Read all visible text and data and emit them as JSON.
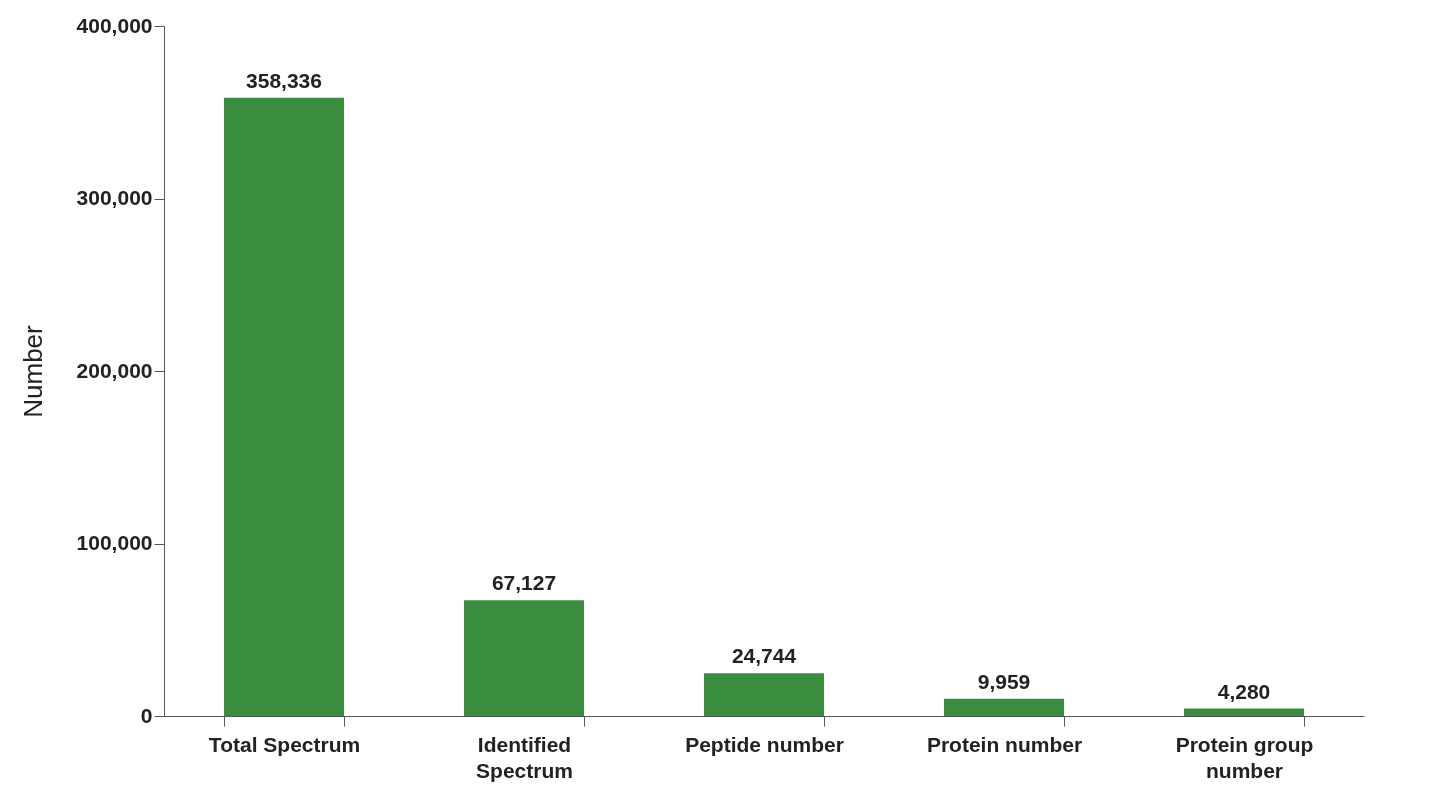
{
  "chart_data": {
    "type": "bar",
    "ylabel": "Number",
    "categories": [
      "Total Spectrum",
      "Identified Spectrum",
      "Peptide number",
      "Protein number",
      "Protein group number"
    ],
    "values": [
      358336,
      67127,
      24744,
      9959,
      4280
    ],
    "value_labels": [
      "358,336",
      "67,127",
      "24,744",
      "9,959",
      "4,280"
    ],
    "color": "#3a8c3f",
    "ylim": [
      0,
      400000
    ],
    "yticks": [
      0,
      {
        "value": 100000,
        "label": "100,000"
      },
      {
        "value": 200000,
        "label": "200,000"
      },
      {
        "value": 300000,
        "label": "300,000"
      },
      {
        "value": 400000,
        "label": "400,000"
      }
    ],
    "grid": false
  }
}
